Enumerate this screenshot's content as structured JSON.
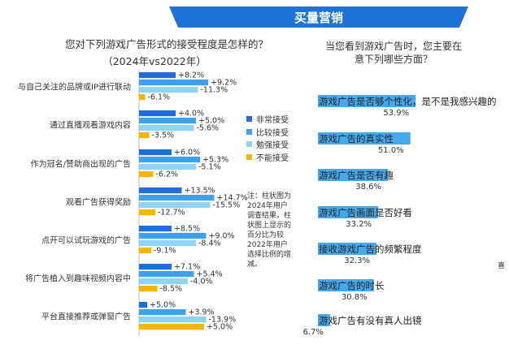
{
  "banner": {
    "title": "买量营销"
  },
  "left": {
    "title": "您对下列游戏广告形式的接受程度是怎样的？",
    "subtitle": "（2024年vs2022年）",
    "legend": [
      {
        "label": "非常接受",
        "color": "#1e6fd9"
      },
      {
        "label": "比较接受",
        "color": "#3ea0f0"
      },
      {
        "label": "勉强接受",
        "color": "#8fd3f5"
      },
      {
        "label": "不能接受",
        "color": "#f7b500"
      }
    ],
    "note": "注：柱状图为2024年用户调查结果，柱状图上显示的百分比为较2022年用户选择比例的增减。"
  },
  "right": {
    "title_line1": "当您看到游戏广告时，您主要在",
    "title_line2": "意下列哪些方面？",
    "clipped_text": "喜"
  },
  "chart_data": [
    {
      "type": "bar",
      "orientation": "horizontal",
      "stacked": false,
      "title": "您对下列游戏广告形式的接受程度是怎样的？（2024年vs2022年）",
      "categories": [
        "与自己关注的品牌或IP进行联动",
        "通过直播观看游戏内容",
        "作为冠名/赞助商出现的广告",
        "观看广告获得奖励",
        "点开可以试玩游戏的广告",
        "将广告植入到趣味视频内容中",
        "平台直接推荐或弹窗广告"
      ],
      "series": [
        {
          "name": "非常接受",
          "color": "#1e6fd9",
          "values": [
            18,
            18,
            16,
            21,
            16,
            16,
            4
          ],
          "labels": [
            "+8.2%",
            "+4.0%",
            "+6.0%",
            "+13.5%",
            "+8.5%",
            "+7.1%",
            "+5.0%"
          ]
        },
        {
          "name": "比较接受",
          "color": "#3ea0f0",
          "values": [
            34,
            28,
            30,
            37,
            33,
            27,
            23
          ],
          "labels": [
            "+9.2%",
            "+5.0%",
            "+5.3%",
            "+14.7%",
            "+9.0%",
            "+5.4%",
            "+3.9%"
          ]
        },
        {
          "name": "勉强接受",
          "color": "#8fd3f5",
          "values": [
            29,
            27,
            28,
            35,
            28,
            24,
            33
          ],
          "labels": [
            "-11.3%",
            "-5.6%",
            "-5.1%",
            "-15.5%",
            "-8.4%",
            "-4.0%",
            "-13.9%"
          ]
        },
        {
          "name": "不能接受",
          "color": "#f7b500",
          "values": [
            3,
            5,
            7,
            8,
            6,
            9,
            32
          ],
          "labels": [
            "-6.1%",
            "-3.5%",
            "-6.2%",
            "-12.7%",
            "-9.1%",
            "-8.5%",
            "+5.0%"
          ]
        }
      ],
      "grid": false
    },
    {
      "type": "bar",
      "orientation": "horizontal",
      "title": "当您看到游戏广告时，您主要在意下列哪些方面？",
      "color": "#45a9ee",
      "categories": [
        "游戏广告是否够个性化，是不是我感兴趣的",
        "游戏广告的真实性",
        "游戏广告是否有趣",
        "游戏广告画面是否好看",
        "接收游戏广告的频繁程度",
        "游戏广告的时长",
        "游戏广告有没有真人出镜"
      ],
      "values": [
        53.9,
        51.0,
        38.6,
        33.2,
        32.3,
        30.8,
        6.7
      ],
      "value_labels": [
        "53.9%",
        "51.0%",
        "38.6%",
        "33.2%",
        "32.3%",
        "30.8%",
        "6.7%"
      ],
      "grid": false
    }
  ]
}
